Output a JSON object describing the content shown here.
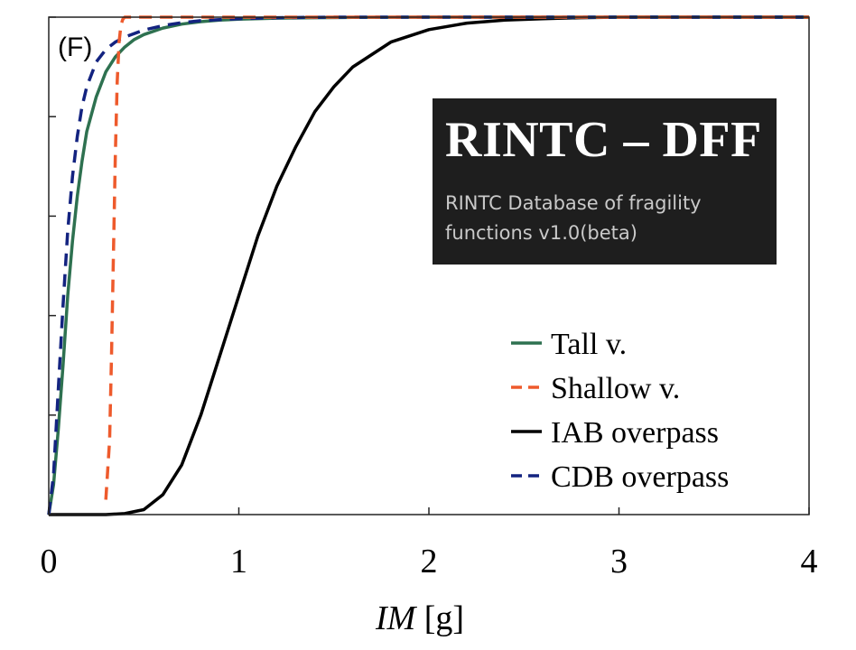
{
  "chart_data": {
    "type": "line",
    "panel_label": "(F)",
    "xlabel": {
      "italic": "IM",
      "unit": " [g]"
    },
    "ylabel": "",
    "xlim": [
      0,
      4
    ],
    "ylim": [
      0,
      1
    ],
    "xticks": [
      0,
      1,
      2,
      3,
      4
    ],
    "xtick_labels": [
      "0",
      "1",
      "2",
      "3",
      "4"
    ],
    "yticks": [
      0,
      0.2,
      0.4,
      0.6,
      0.8,
      1.0
    ],
    "ytick_labels_visible": false,
    "grid": false,
    "legend_position": "bottom-right",
    "series": [
      {
        "name": "Tall v.",
        "color": "#2e7150",
        "dash": "solid",
        "x": [
          0,
          0.025,
          0.05,
          0.075,
          0.1,
          0.125,
          0.15,
          0.175,
          0.2,
          0.25,
          0.3,
          0.35,
          0.4,
          0.45,
          0.5,
          0.6,
          0.7,
          0.8,
          0.9,
          1.0,
          1.2,
          1.4,
          1.6,
          2.0,
          3.0,
          4.0
        ],
        "y": [
          0,
          0.06,
          0.17,
          0.3,
          0.44,
          0.55,
          0.64,
          0.71,
          0.77,
          0.84,
          0.89,
          0.92,
          0.94,
          0.955,
          0.965,
          0.978,
          0.986,
          0.991,
          0.994,
          0.996,
          0.998,
          0.999,
          0.9995,
          1,
          1,
          1
        ]
      },
      {
        "name": "Shallow v.",
        "color": "#ee5a2c",
        "dash": "dashed",
        "x": [
          0.3,
          0.32,
          0.33,
          0.34,
          0.35,
          0.36,
          0.37,
          0.38,
          0.39,
          0.4,
          0.45,
          4.0
        ],
        "y": [
          0.03,
          0.15,
          0.32,
          0.52,
          0.72,
          0.87,
          0.95,
          0.985,
          0.996,
          1.0,
          1.0,
          1.0
        ]
      },
      {
        "name": "IAB overpass",
        "color": "#000000",
        "dash": "solid",
        "x": [
          0,
          0.3,
          0.4,
          0.5,
          0.6,
          0.7,
          0.8,
          0.9,
          1.0,
          1.1,
          1.2,
          1.3,
          1.4,
          1.5,
          1.6,
          1.8,
          2.0,
          2.2,
          2.4,
          2.6,
          2.8,
          3.0,
          3.5,
          4.0
        ],
        "y": [
          0,
          0,
          0.002,
          0.01,
          0.04,
          0.1,
          0.2,
          0.32,
          0.44,
          0.56,
          0.66,
          0.74,
          0.81,
          0.86,
          0.9,
          0.95,
          0.975,
          0.988,
          0.994,
          0.997,
          0.999,
          1,
          1,
          1
        ]
      },
      {
        "name": "CDB overpass",
        "color": "#132380",
        "dash": "dashed",
        "x": [
          0,
          0.025,
          0.05,
          0.075,
          0.1,
          0.125,
          0.15,
          0.175,
          0.2,
          0.25,
          0.3,
          0.35,
          0.4,
          0.5,
          0.6,
          0.7,
          0.8,
          0.9,
          1.0,
          1.2,
          1.5,
          2.0,
          3.0,
          4.0
        ],
        "y": [
          0,
          0.08,
          0.25,
          0.42,
          0.57,
          0.68,
          0.76,
          0.82,
          0.86,
          0.91,
          0.935,
          0.95,
          0.96,
          0.974,
          0.983,
          0.989,
          0.993,
          0.995,
          0.997,
          0.999,
          1,
          1,
          1,
          1
        ]
      }
    ]
  },
  "banner": {
    "title": "RINTC – DFF",
    "subtitle": "RINTC Database of fragility functions v1.0(beta)"
  }
}
